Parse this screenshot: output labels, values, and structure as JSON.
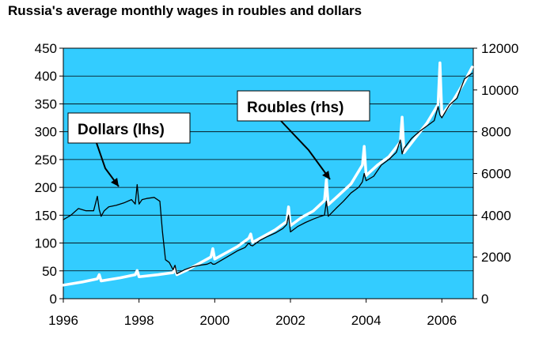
{
  "chart_data": {
    "type": "line",
    "title": "Russia's average monthly wages in roubles and dollars",
    "xlabel": "",
    "xlim": [
      1996,
      2006.83
    ],
    "x_ticks": [
      "1996",
      "1998",
      "2000",
      "2002",
      "2004",
      "2006"
    ],
    "y_left": {
      "label": "",
      "lim": [
        0,
        450
      ],
      "ticks": [
        "0",
        "50",
        "100",
        "150",
        "200",
        "250",
        "300",
        "350",
        "400",
        "450"
      ]
    },
    "y_right": {
      "label": "",
      "lim": [
        0,
        12000
      ],
      "ticks": [
        "0",
        "2000",
        "4000",
        "6000",
        "8000",
        "10000",
        "12000"
      ]
    },
    "grid": true,
    "background_color": "#33CCFF",
    "series": [
      {
        "name": "Dollars (lhs)",
        "axis": "left",
        "color": "#000000",
        "x": [
          1996.0,
          1996.2,
          1996.4,
          1996.6,
          1996.8,
          1996.9,
          1996.95,
          1997.0,
          1997.08,
          1997.2,
          1997.4,
          1997.6,
          1997.8,
          1997.9,
          1997.95,
          1998.0,
          1998.08,
          1998.2,
          1998.4,
          1998.55,
          1998.62,
          1998.7,
          1998.8,
          1998.9,
          1998.95,
          1999.0,
          1999.2,
          1999.4,
          1999.6,
          1999.8,
          1999.9,
          1999.95,
          2000.0,
          2000.2,
          2000.4,
          2000.6,
          2000.8,
          2000.9,
          2000.95,
          2001.0,
          2001.2,
          2001.4,
          2001.6,
          2001.8,
          2001.9,
          2001.95,
          2002.0,
          2002.2,
          2002.4,
          2002.6,
          2002.8,
          2002.9,
          2002.95,
          2003.0,
          2003.2,
          2003.4,
          2003.6,
          2003.8,
          2003.9,
          2003.95,
          2004.0,
          2004.2,
          2004.4,
          2004.6,
          2004.8,
          2004.9,
          2004.95,
          2005.0,
          2005.2,
          2005.4,
          2005.6,
          2005.8,
          2005.9,
          2005.95,
          2006.0,
          2006.2,
          2006.4,
          2006.6,
          2006.8
        ],
        "values": [
          142,
          150,
          162,
          158,
          158,
          184,
          160,
          148,
          158,
          165,
          168,
          172,
          178,
          170,
          205,
          170,
          178,
          180,
          182,
          175,
          120,
          70,
          65,
          52,
          60,
          45,
          52,
          57,
          60,
          62,
          65,
          62,
          62,
          70,
          78,
          86,
          92,
          100,
          96,
          95,
          105,
          112,
          118,
          126,
          133,
          150,
          120,
          130,
          137,
          143,
          148,
          150,
          175,
          148,
          162,
          175,
          190,
          200,
          210,
          225,
          212,
          220,
          240,
          250,
          263,
          285,
          260,
          270,
          288,
          300,
          310,
          320,
          345,
          330,
          325,
          348,
          360,
          395,
          405
        ]
      },
      {
        "name": "Roubles (rhs)",
        "axis": "right",
        "color": "#ffffff",
        "x": [
          1996.0,
          1996.5,
          1996.9,
          1996.95,
          1997.0,
          1997.5,
          1997.9,
          1997.95,
          1998.0,
          1998.5,
          1998.9,
          1998.95,
          1999.0,
          1999.3,
          1999.6,
          1999.9,
          1999.95,
          2000.0,
          2000.3,
          2000.6,
          2000.9,
          2000.95,
          2001.0,
          2001.3,
          2001.6,
          2001.9,
          2001.95,
          2002.0,
          2002.3,
          2002.6,
          2002.9,
          2002.95,
          2003.0,
          2003.3,
          2003.6,
          2003.9,
          2003.95,
          2004.0,
          2004.3,
          2004.6,
          2004.9,
          2004.95,
          2005.0,
          2005.3,
          2005.6,
          2005.9,
          2005.95,
          2006.0,
          2006.3,
          2006.6,
          2006.8
        ],
        "values": [
          650,
          800,
          950,
          1150,
          850,
          1000,
          1150,
          1350,
          1050,
          1150,
          1250,
          1450,
          1150,
          1400,
          1700,
          2000,
          2400,
          1900,
          2200,
          2500,
          2900,
          3100,
          2700,
          3000,
          3300,
          3700,
          4400,
          3500,
          3900,
          4200,
          4700,
          5700,
          4500,
          5000,
          5500,
          6400,
          7300,
          5900,
          6400,
          6800,
          7500,
          8700,
          7000,
          7700,
          8400,
          9300,
          11300,
          8800,
          9500,
          10400,
          11100
        ]
      }
    ],
    "annotations": [
      {
        "text": "Dollars (lhs)"
      },
      {
        "text": "Roubles (rhs)"
      }
    ]
  }
}
